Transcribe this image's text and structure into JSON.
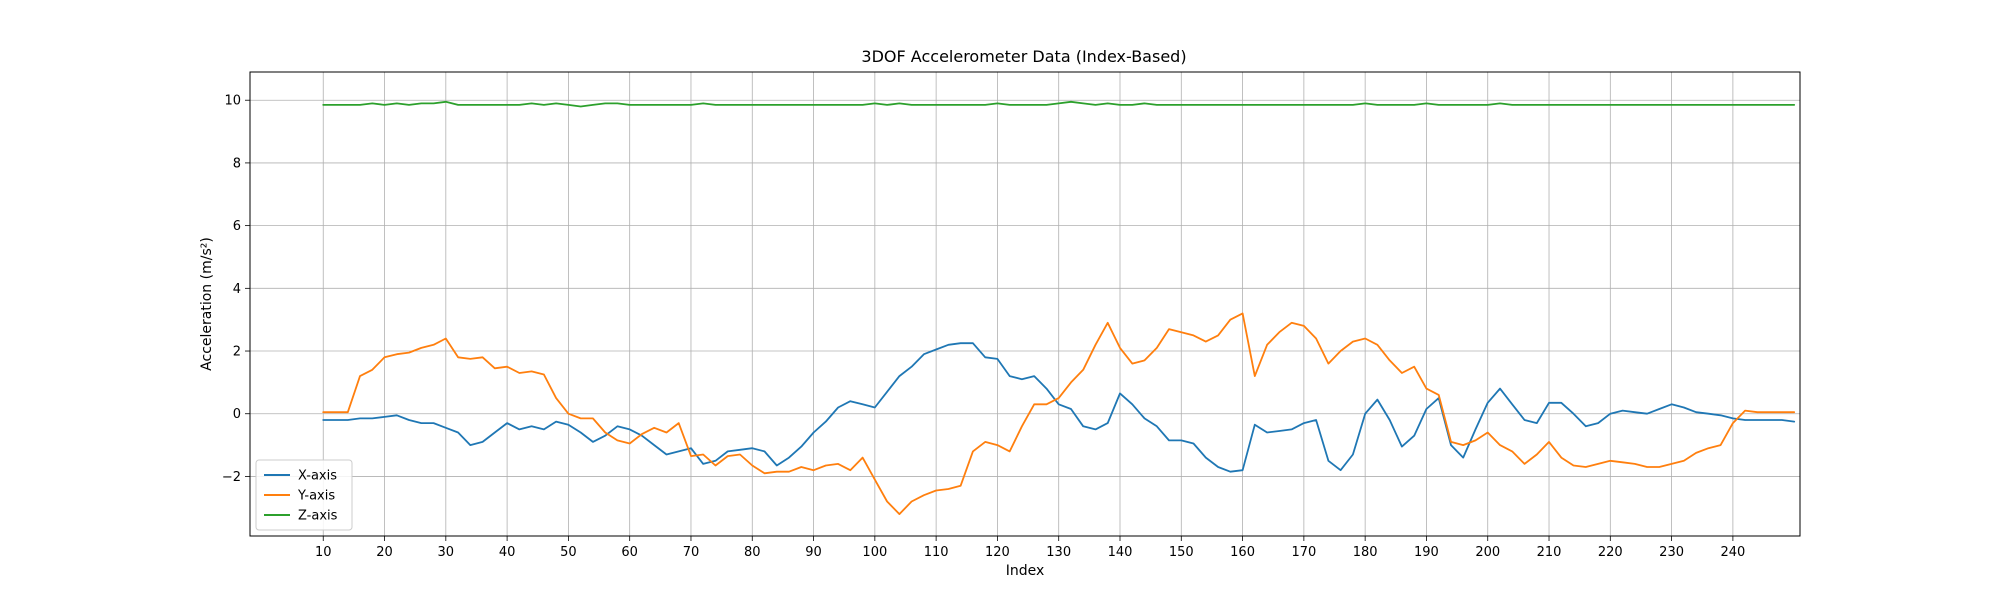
{
  "chart_data": {
    "type": "line",
    "title": "3DOF Accelerometer Data (Index-Based)",
    "xlabel": "Index",
    "ylabel": "Acceleration (m/s²)",
    "xlim": [
      -1.95,
      250.95
    ],
    "ylim": [
      -3.9,
      10.9
    ],
    "x_ticks": [
      10,
      20,
      30,
      40,
      50,
      60,
      70,
      80,
      90,
      100,
      110,
      120,
      130,
      140,
      150,
      160,
      170,
      180,
      190,
      200,
      210,
      220,
      230,
      240
    ],
    "y_ticks": [
      -2,
      0,
      2,
      4,
      6,
      8,
      10
    ],
    "grid": true,
    "legend_position": "lower-left",
    "x": [
      10,
      12,
      14,
      16,
      18,
      20,
      22,
      24,
      26,
      28,
      30,
      32,
      34,
      36,
      38,
      40,
      42,
      44,
      46,
      48,
      50,
      52,
      54,
      56,
      58,
      60,
      62,
      64,
      66,
      68,
      70,
      72,
      74,
      76,
      78,
      80,
      82,
      84,
      86,
      88,
      90,
      92,
      94,
      96,
      98,
      100,
      102,
      104,
      106,
      108,
      110,
      112,
      114,
      116,
      118,
      120,
      122,
      124,
      126,
      128,
      130,
      132,
      134,
      136,
      138,
      140,
      142,
      144,
      146,
      148,
      150,
      152,
      154,
      156,
      158,
      160,
      162,
      164,
      166,
      168,
      170,
      172,
      174,
      176,
      178,
      180,
      182,
      184,
      186,
      188,
      190,
      192,
      194,
      196,
      198,
      200,
      202,
      204,
      206,
      208,
      210,
      212,
      214,
      216,
      218,
      220,
      222,
      224,
      226,
      228,
      230,
      232,
      234,
      236,
      238,
      240,
      242,
      244,
      246,
      248,
      250
    ],
    "series": [
      {
        "name": "X-axis",
        "color": "#1f77b4",
        "values": [
          -0.2,
          -0.2,
          -0.2,
          -0.15,
          -0.15,
          -0.1,
          -0.05,
          -0.2,
          -0.3,
          -0.3,
          -0.45,
          -0.6,
          -1.0,
          -0.9,
          -0.6,
          -0.3,
          -0.5,
          -0.4,
          -0.5,
          -0.25,
          -0.35,
          -0.6,
          -0.9,
          -0.7,
          -0.4,
          -0.5,
          -0.7,
          -1.0,
          -1.3,
          -1.2,
          -1.1,
          -1.6,
          -1.5,
          -1.2,
          -1.15,
          -1.1,
          -1.2,
          -1.65,
          -1.4,
          -1.05,
          -0.6,
          -0.25,
          0.2,
          0.4,
          0.3,
          0.2,
          0.7,
          1.2,
          1.5,
          1.9,
          2.05,
          2.2,
          2.25,
          2.25,
          1.8,
          1.75,
          1.2,
          1.1,
          1.2,
          0.8,
          0.3,
          0.15,
          -0.4,
          -0.5,
          -0.3,
          0.65,
          0.3,
          -0.15,
          -0.4,
          -0.85,
          -0.85,
          -0.95,
          -1.4,
          -1.7,
          -1.85,
          -1.8,
          -0.35,
          -0.6,
          -0.55,
          -0.5,
          -0.3,
          -0.2,
          -1.5,
          -1.8,
          -1.3,
          0.0,
          0.45,
          -0.2,
          -1.05,
          -0.7,
          0.15,
          0.5,
          -1.0,
          -1.4,
          -0.5,
          0.35,
          0.8,
          0.3,
          -0.2,
          -0.3,
          0.35,
          0.35,
          0.0,
          -0.4,
          -0.3,
          0.0,
          0.1,
          0.05,
          0.0,
          0.15,
          0.3,
          0.2,
          0.05,
          0.0,
          -0.05,
          -0.15,
          -0.2,
          -0.2,
          -0.2,
          -0.2,
          -0.25
        ]
      },
      {
        "name": "Y-axis",
        "color": "#ff7f0e",
        "values": [
          0.05,
          0.05,
          0.05,
          1.2,
          1.4,
          1.8,
          1.9,
          1.95,
          2.1,
          2.2,
          2.4,
          1.8,
          1.75,
          1.8,
          1.45,
          1.5,
          1.3,
          1.35,
          1.25,
          0.5,
          0.0,
          -0.15,
          -0.15,
          -0.6,
          -0.85,
          -0.95,
          -0.65,
          -0.45,
          -0.6,
          -0.3,
          -1.35,
          -1.3,
          -1.65,
          -1.35,
          -1.3,
          -1.65,
          -1.9,
          -1.85,
          -1.85,
          -1.7,
          -1.8,
          -1.65,
          -1.6,
          -1.8,
          -1.4,
          -2.1,
          -2.8,
          -3.2,
          -2.8,
          -2.6,
          -2.45,
          -2.4,
          -2.3,
          -1.2,
          -0.9,
          -1.0,
          -1.2,
          -0.4,
          0.3,
          0.3,
          0.5,
          1.0,
          1.4,
          2.2,
          2.9,
          2.1,
          1.6,
          1.7,
          2.1,
          2.7,
          2.6,
          2.5,
          2.3,
          2.5,
          3.0,
          3.2,
          1.2,
          2.2,
          2.6,
          2.9,
          2.8,
          2.4,
          1.6,
          2.0,
          2.3,
          2.4,
          2.2,
          1.7,
          1.3,
          1.5,
          0.8,
          0.6,
          -0.9,
          -1.0,
          -0.85,
          -0.6,
          -1.0,
          -1.2,
          -1.6,
          -1.3,
          -0.9,
          -1.4,
          -1.65,
          -1.7,
          -1.6,
          -1.5,
          -1.55,
          -1.6,
          -1.7,
          -1.7,
          -1.6,
          -1.5,
          -1.25,
          -1.1,
          -1.0,
          -0.3,
          0.1,
          0.05,
          0.05,
          0.05,
          0.05
        ]
      },
      {
        "name": "Z-axis",
        "color": "#2ca02c",
        "values": [
          9.85,
          9.85,
          9.85,
          9.85,
          9.9,
          9.85,
          9.9,
          9.85,
          9.9,
          9.9,
          9.95,
          9.85,
          9.85,
          9.85,
          9.85,
          9.85,
          9.85,
          9.9,
          9.85,
          9.9,
          9.85,
          9.8,
          9.85,
          9.9,
          9.9,
          9.85,
          9.85,
          9.85,
          9.85,
          9.85,
          9.85,
          9.9,
          9.85,
          9.85,
          9.85,
          9.85,
          9.85,
          9.85,
          9.85,
          9.85,
          9.85,
          9.85,
          9.85,
          9.85,
          9.85,
          9.9,
          9.85,
          9.9,
          9.85,
          9.85,
          9.85,
          9.85,
          9.85,
          9.85,
          9.85,
          9.9,
          9.85,
          9.85,
          9.85,
          9.85,
          9.9,
          9.95,
          9.9,
          9.85,
          9.9,
          9.85,
          9.85,
          9.9,
          9.85,
          9.85,
          9.85,
          9.85,
          9.85,
          9.85,
          9.85,
          9.85,
          9.85,
          9.85,
          9.85,
          9.85,
          9.85,
          9.85,
          9.85,
          9.85,
          9.85,
          9.9,
          9.85,
          9.85,
          9.85,
          9.85,
          9.9,
          9.85,
          9.85,
          9.85,
          9.85,
          9.85,
          9.9,
          9.85,
          9.85,
          9.85,
          9.85,
          9.85,
          9.85,
          9.85,
          9.85,
          9.85,
          9.85,
          9.85,
          9.85,
          9.85,
          9.85,
          9.85,
          9.85,
          9.85,
          9.85,
          9.85,
          9.85,
          9.85,
          9.85,
          9.85,
          9.85
        ]
      }
    ]
  }
}
